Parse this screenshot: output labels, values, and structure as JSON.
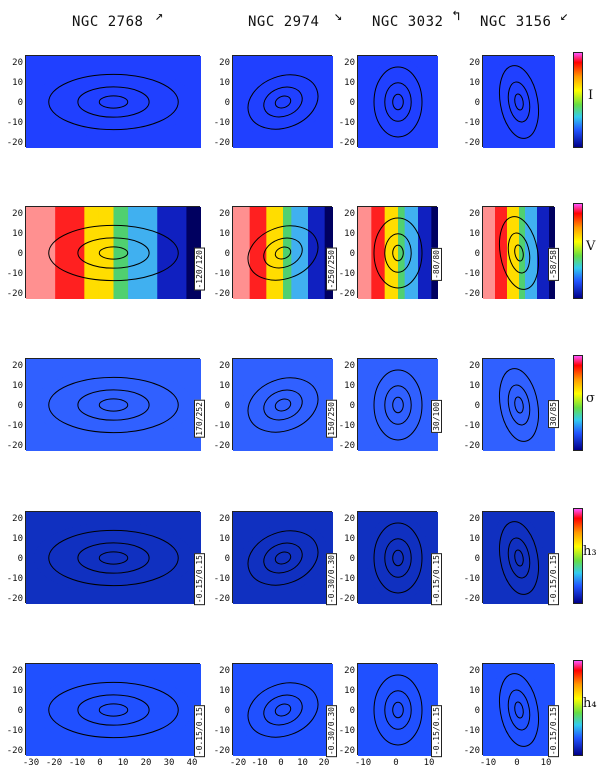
{
  "galaxies": [
    {
      "name": "NGC 2768",
      "arrow": "↗"
    },
    {
      "name": "NGC 2974",
      "arrow": "↘"
    },
    {
      "name": "NGC 3032",
      "arrow": "↰"
    },
    {
      "name": "NGC 3156",
      "arrow": "↙"
    }
  ],
  "rows": [
    {
      "label": "I",
      "ranges": [
        "",
        "",
        "",
        ""
      ]
    },
    {
      "label": "V",
      "ranges": [
        "-120/120",
        "-250/250",
        "-80/80",
        "-58/58"
      ]
    },
    {
      "label": "σ",
      "ranges": [
        "170/252",
        "150/250",
        "30/100",
        "30/85"
      ]
    },
    {
      "label": "h₃",
      "ranges": [
        "-0.15/0.15",
        "-0.30/0.30",
        "-0.15/0.15",
        "-0.15/0.15"
      ]
    },
    {
      "label": "h₄",
      "ranges": [
        "-0.15/0.15",
        "-0.30/0.30",
        "-0.15/0.15",
        "-0.15/0.15"
      ]
    }
  ],
  "yticks_large": [
    "20",
    "10",
    "0",
    "-10",
    "-20"
  ],
  "xticks": [
    [
      "-30",
      "-20",
      "-10",
      "0",
      "10",
      "20",
      "30",
      "40"
    ],
    [
      "-20",
      "-10",
      "0",
      "10",
      "20"
    ],
    [
      "-10",
      "0",
      "10"
    ],
    [
      "-10",
      "0",
      "10"
    ]
  ]
}
